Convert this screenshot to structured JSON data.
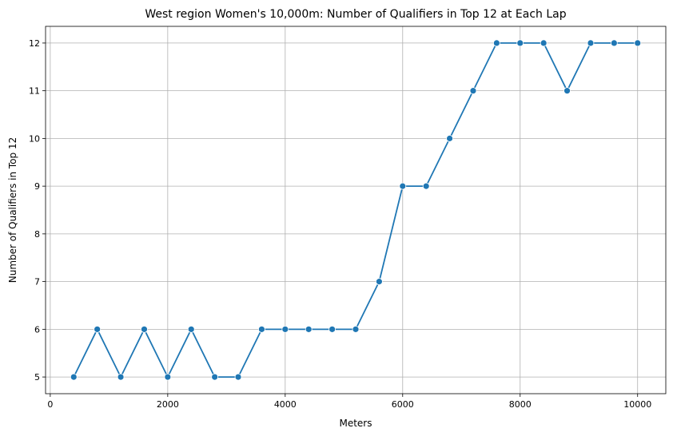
{
  "chart_data": {
    "type": "line",
    "title": "West region Women's 10,000m: Number of Qualifiers in Top 12 at Each Lap",
    "x_label": "Meters",
    "y_label": "Number of Qualifiers in Top 12",
    "x": [
      400,
      800,
      1200,
      1600,
      2000,
      2400,
      2800,
      3200,
      3600,
      4000,
      4400,
      4800,
      5200,
      5600,
      6000,
      6400,
      6800,
      7200,
      7600,
      8000,
      8400,
      8800,
      9200,
      9600,
      10000
    ],
    "series": [
      {
        "color": "#1f77b4",
        "values": [
          5,
          6,
          5,
          6,
          5,
          6,
          5,
          5,
          6,
          6,
          6,
          6,
          6,
          7,
          9,
          9,
          10,
          11,
          12,
          12,
          12,
          11,
          12,
          12,
          12
        ]
      }
    ],
    "xlim": [
      -80,
      10480
    ],
    "xticks": [
      0,
      2000,
      4000,
      6000,
      8000,
      10000
    ],
    "ylim": [
      4.65,
      12.35
    ],
    "yticks": [
      5,
      6,
      7,
      8,
      9,
      10,
      11,
      12
    ],
    "grid": true
  }
}
